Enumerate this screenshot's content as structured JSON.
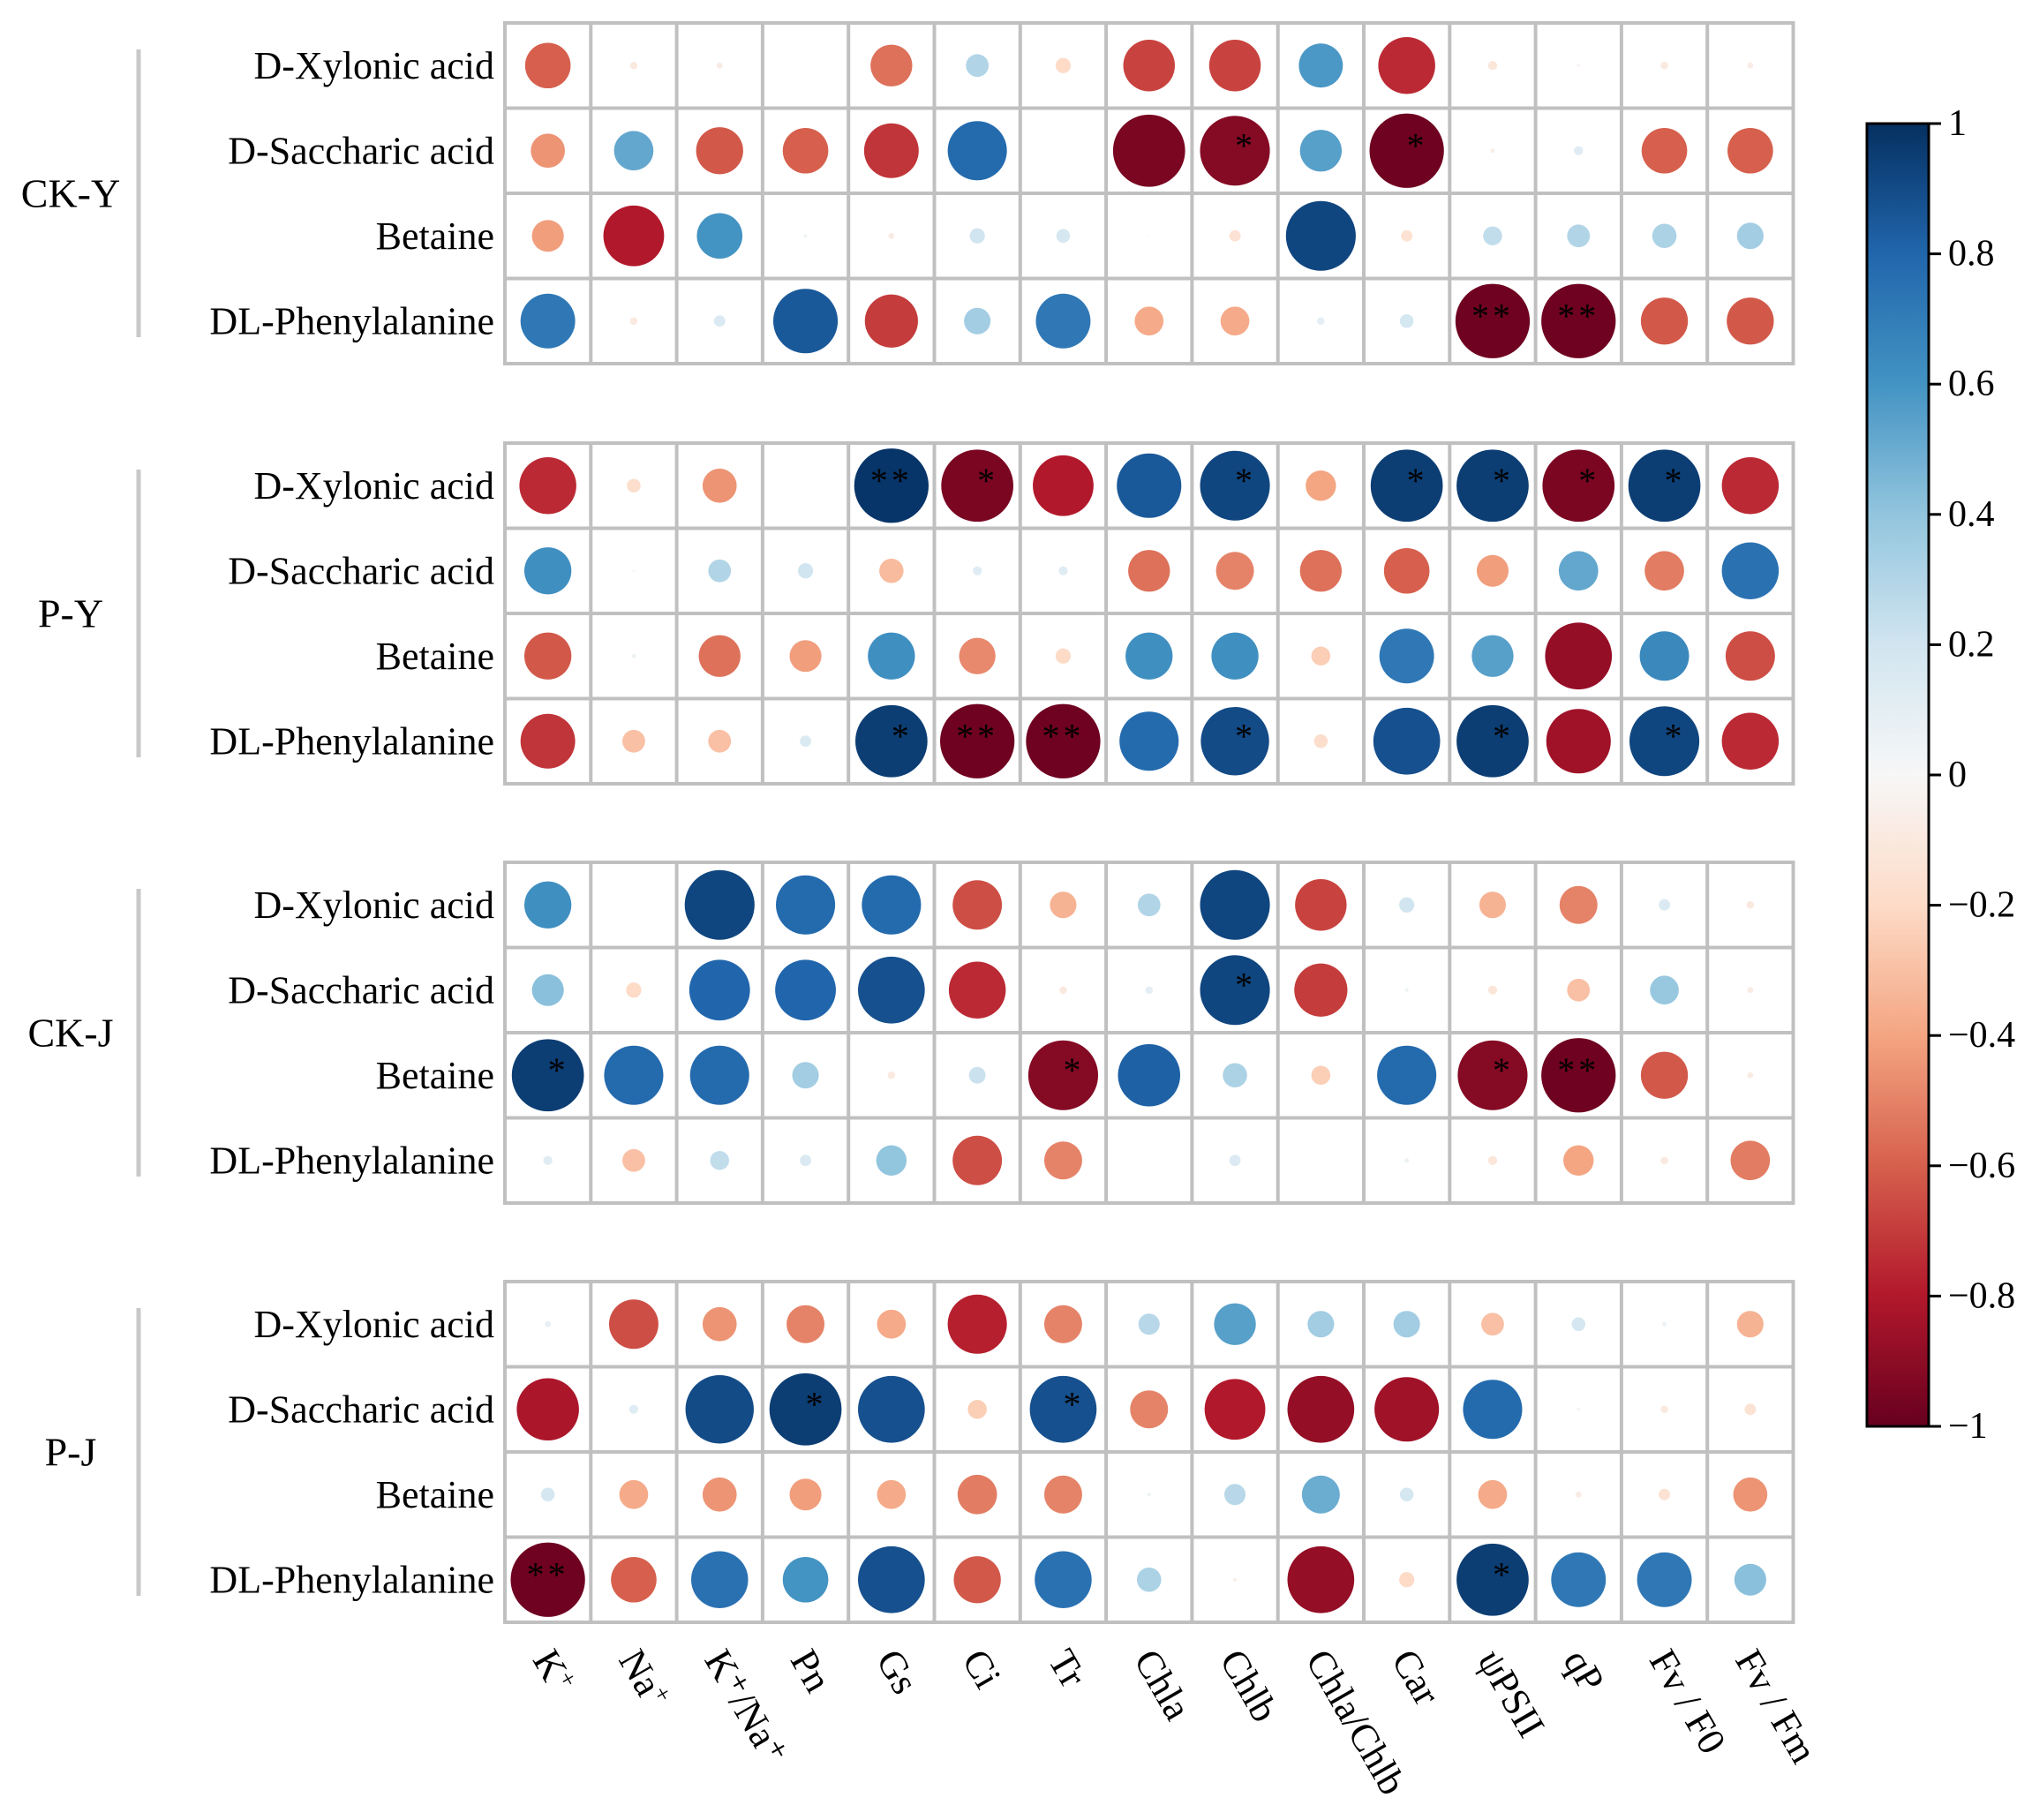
{
  "chart_data": {
    "type": "heatmap",
    "style": "circle-correlation-matrix",
    "columns": [
      {
        "base": "K",
        "sup": "+",
        "sub": ""
      },
      {
        "base": "Na",
        "sup": "+",
        "sub": ""
      },
      {
        "base": "K⁺/Na⁺",
        "sup": "",
        "sub": ""
      },
      {
        "base": "Pn",
        "sup": "",
        "sub": ""
      },
      {
        "base": "Gs",
        "sup": "",
        "sub": ""
      },
      {
        "base": "Ci",
        "sup": "",
        "sub": ""
      },
      {
        "base": "Tr",
        "sup": "",
        "sub": ""
      },
      {
        "base": "Chla",
        "sup": "",
        "sub": ""
      },
      {
        "base": "Chlb",
        "sup": "",
        "sub": ""
      },
      {
        "base": "Chla/Chlb",
        "sup": "",
        "sub": ""
      },
      {
        "base": "Car",
        "sup": "",
        "sub": ""
      },
      {
        "base": "ψPSII",
        "sup": "",
        "sub": ""
      },
      {
        "base": "qP",
        "sup": "",
        "sub": ""
      },
      {
        "base": "Fv / F0",
        "sup": "",
        "sub": ""
      },
      {
        "base": "Fv / Fm",
        "sup": "",
        "sub": ""
      }
    ],
    "groups": [
      {
        "name": "CK-Y",
        "rows": [
          "D-Xylonic acid",
          "D-Saccharic acid",
          "Betaine",
          "DL-Phenylalanine"
        ],
        "values": [
          [
            -0.6,
            -0.1,
            -0.08,
            0.0,
            -0.55,
            0.3,
            -0.2,
            -0.68,
            -0.68,
            0.58,
            -0.75,
            -0.12,
            -0.04,
            -0.1,
            -0.08
          ],
          [
            -0.45,
            0.52,
            -0.62,
            -0.6,
            -0.72,
            0.78,
            -0.01,
            -0.95,
            -0.92,
            0.55,
            -0.98,
            -0.06,
            0.12,
            -0.6,
            -0.6
          ],
          [
            -0.42,
            -0.8,
            0.6,
            0.05,
            -0.08,
            0.2,
            0.18,
            -0.02,
            -0.15,
            0.92,
            -0.15,
            0.25,
            0.3,
            0.32,
            0.35
          ],
          [
            0.72,
            -0.1,
            0.15,
            0.85,
            -0.7,
            0.35,
            0.72,
            -0.38,
            -0.38,
            0.1,
            0.18,
            -0.98,
            -0.98,
            -0.62,
            -0.62
          ]
        ],
        "stars": [
          [
            "",
            "",
            "",
            "",
            "",
            "",
            "",
            "",
            "",
            "",
            "",
            "",
            "",
            "",
            ""
          ],
          [
            "",
            "",
            "",
            "",
            "",
            "",
            "",
            "",
            "*",
            "",
            "*",
            "",
            "",
            "",
            ""
          ],
          [
            "",
            "",
            "",
            "",
            "",
            "",
            "",
            "",
            "",
            "",
            "",
            "",
            "",
            "",
            ""
          ],
          [
            "",
            "",
            "",
            "",
            "",
            "",
            "",
            "",
            "",
            "",
            "",
            "**",
            "**",
            "",
            ""
          ]
        ]
      },
      {
        "name": "P-Y",
        "rows": [
          "D-Xylonic acid",
          "D-Saccharic acid",
          "Betaine",
          "DL-Phenylalanine"
        ],
        "values": [
          [
            -0.75,
            -0.18,
            -0.45,
            0.0,
            0.98,
            -0.95,
            -0.8,
            0.85,
            0.92,
            -0.4,
            0.95,
            0.95,
            -0.95,
            0.95,
            -0.75
          ],
          [
            0.62,
            -0.03,
            0.3,
            0.2,
            -0.32,
            0.12,
            0.12,
            -0.55,
            -0.5,
            -0.55,
            -0.6,
            -0.42,
            0.52,
            -0.52,
            0.75
          ],
          [
            -0.62,
            0.06,
            -0.55,
            -0.42,
            0.62,
            -0.48,
            -0.2,
            0.62,
            0.62,
            -0.25,
            0.72,
            0.55,
            -0.88,
            0.65,
            -0.65
          ],
          [
            -0.72,
            -0.3,
            -0.3,
            0.15,
            0.95,
            -0.98,
            -0.98,
            0.78,
            0.9,
            -0.18,
            0.88,
            0.95,
            -0.85,
            0.92,
            -0.75
          ]
        ],
        "stars": [
          [
            "",
            "",
            "",
            "",
            "**",
            "*",
            "",
            "",
            "*",
            "",
            "*",
            "*",
            "*",
            "*",
            ""
          ],
          [
            "",
            "",
            "",
            "",
            "",
            "",
            "",
            "",
            "",
            "",
            "",
            "",
            "",
            "",
            ""
          ],
          [
            "",
            "",
            "",
            "",
            "",
            "",
            "",
            "",
            "",
            "",
            "",
            "",
            "",
            "",
            ""
          ],
          [
            "",
            "",
            "",
            "",
            "*",
            "**",
            "**",
            "",
            "*",
            "",
            "",
            "*",
            "",
            "*",
            ""
          ]
        ]
      },
      {
        "name": "CK-J",
        "rows": [
          "D-Xylonic acid",
          "D-Saccharic acid",
          "Betaine",
          "DL-Phenylalanine"
        ],
        "values": [
          [
            0.62,
            0.01,
            0.92,
            0.78,
            0.78,
            -0.65,
            -0.35,
            0.3,
            0.92,
            -0.68,
            0.2,
            -0.35,
            -0.5,
            0.15,
            -0.1
          ],
          [
            0.42,
            -0.2,
            0.8,
            0.8,
            0.88,
            -0.75,
            -0.1,
            0.1,
            0.92,
            -0.7,
            0.05,
            -0.12,
            -0.3,
            0.38,
            -0.08
          ],
          [
            0.95,
            0.78,
            0.78,
            0.35,
            -0.1,
            0.22,
            -0.92,
            0.82,
            0.32,
            -0.25,
            0.78,
            -0.92,
            -0.98,
            -0.62,
            -0.08
          ],
          [
            0.12,
            -0.3,
            0.25,
            0.15,
            0.4,
            -0.65,
            -0.5,
            0.0,
            0.15,
            0.0,
            0.06,
            -0.12,
            -0.4,
            -0.1,
            -0.52
          ]
        ],
        "stars": [
          [
            "",
            "",
            "",
            "",
            "",
            "",
            "",
            "",
            "",
            "",
            "",
            "",
            "",
            "",
            ""
          ],
          [
            "",
            "",
            "",
            "",
            "",
            "",
            "",
            "",
            "*",
            "",
            "",
            "",
            "",
            "",
            ""
          ],
          [
            "*",
            "",
            "",
            "",
            "",
            "",
            "*",
            "",
            "",
            "",
            "",
            "*",
            "**",
            "",
            ""
          ],
          [
            "",
            "",
            "",
            "",
            "",
            "",
            "",
            "",
            "",
            "",
            "",
            "",
            "",
            "",
            ""
          ]
        ]
      },
      {
        "name": "P-J",
        "rows": [
          "D-Xylonic acid",
          "D-Saccharic acid",
          "Betaine",
          "DL-Phenylalanine"
        ],
        "values": [
          [
            0.08,
            -0.65,
            -0.45,
            -0.5,
            -0.38,
            -0.78,
            -0.5,
            0.28,
            0.55,
            0.35,
            0.35,
            -0.3,
            0.18,
            0.06,
            -0.35
          ],
          [
            -0.82,
            0.12,
            0.9,
            0.95,
            0.88,
            -0.25,
            0.88,
            -0.5,
            -0.8,
            -0.88,
            -0.85,
            0.78,
            -0.04,
            -0.1,
            -0.15
          ],
          [
            0.18,
            -0.38,
            -0.45,
            -0.42,
            -0.38,
            -0.52,
            -0.5,
            0.05,
            0.28,
            0.5,
            0.18,
            -0.38,
            -0.08,
            -0.15,
            -0.45
          ],
          [
            -0.98,
            -0.6,
            0.75,
            0.6,
            0.88,
            -0.62,
            0.75,
            0.32,
            -0.05,
            -0.88,
            -0.2,
            0.95,
            0.72,
            0.72,
            0.42
          ]
        ],
        "stars": [
          [
            "",
            "",
            "",
            "",
            "",
            "",
            "",
            "",
            "",
            "",
            "",
            "",
            "",
            "",
            ""
          ],
          [
            "",
            "",
            "",
            "*",
            "",
            "",
            "*",
            "",
            "",
            "",
            "",
            "",
            "",
            "",
            ""
          ],
          [
            "",
            "",
            "",
            "",
            "",
            "",
            "",
            "",
            "",
            "",
            "",
            "",
            "",
            "",
            ""
          ],
          [
            "**",
            "",
            "",
            "",
            "",
            "",
            "",
            "",
            "",
            "",
            "",
            "*",
            "",
            "",
            ""
          ]
        ]
      }
    ],
    "colorbar": {
      "range": [
        -1,
        1
      ],
      "ticks": [
        1,
        0.8,
        0.6,
        0.4,
        0.2,
        0,
        -0.2,
        -0.4,
        -0.6,
        -0.8,
        -1
      ],
      "tick_labels": [
        "1",
        "0.8",
        "0.6",
        "0.4",
        "0.2",
        "0",
        "−0.2",
        "−0.4",
        "−0.6",
        "−0.8",
        "−1"
      ],
      "colors": [
        "#67001f",
        "#b2182b",
        "#d6604d",
        "#f4a582",
        "#fddbc7",
        "#f7f7f7",
        "#d1e5f0",
        "#92c5de",
        "#4393c3",
        "#2166ac",
        "#053061"
      ]
    },
    "colors": {
      "grid": "#c0c0c0",
      "bracket": "#c8c8c8",
      "star": "#ffffff"
    }
  }
}
